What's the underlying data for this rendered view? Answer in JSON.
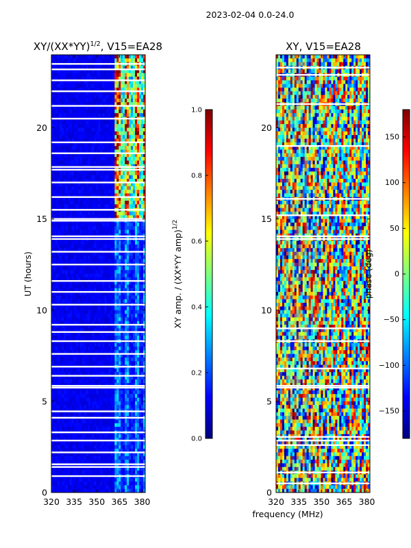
{
  "figure": {
    "suptitle": "2023-02-04 0.0-24.0",
    "xlabel_shared": "frequency (MHz)"
  },
  "colors": {
    "jet": [
      "#00007f",
      "#0000ff",
      "#007fff",
      "#00ffff",
      "#7fff7f",
      "#ffff00",
      "#ff7f00",
      "#ff0000",
      "#7f0000"
    ],
    "gap": "#ffffff"
  },
  "chart_data": [
    {
      "type": "heatmap",
      "id": "left",
      "title_main": "XY/(XX*YY)",
      "title_sup": "1/2",
      "title_tail": ", V15=EA28",
      "xlabel": "",
      "ylabel": "UT (hours)",
      "xlim": [
        320,
        382
      ],
      "ylim": [
        0,
        24
      ],
      "xticks": [
        320,
        335,
        350,
        365,
        380
      ],
      "yticks": [
        0,
        5,
        10,
        15,
        20
      ],
      "colorbar": {
        "label_main": "XY amp. / (XX*YY amp)",
        "label_sup": "1/2",
        "range": [
          0.0,
          1.0
        ],
        "ticks": [
          "0.0",
          "0.2",
          "0.4",
          "0.6",
          "0.8",
          "1.0"
        ],
        "tick_values": [
          0.0,
          0.2,
          0.4,
          0.6,
          0.8,
          1.0
        ]
      },
      "gaps_ut": [
        0.9,
        1.4,
        1.55,
        2.2,
        2.85,
        3.3,
        4.1,
        4.45,
        5.75,
        5.85,
        6.4,
        6.9,
        7.6,
        8.3,
        8.8,
        9.2,
        10.3,
        11.0,
        11.6,
        12.5,
        13.2,
        13.9,
        14.05,
        14.9,
        15.0,
        15.5,
        16.2,
        17.0,
        17.7,
        17.85,
        18.6,
        19.2,
        20.5,
        21.2,
        22.0,
        22.6,
        23.2,
        23.5
      ],
      "features": [
        {
          "f_from": 362,
          "f_to": 382,
          "ut_from": 0,
          "ut_to": 18.0,
          "level": 0.25
        },
        {
          "f_from": 362,
          "f_to": 382,
          "ut_from": 15.0,
          "ut_to": 24.0,
          "level": 0.75
        }
      ],
      "background_level": 0.08
    },
    {
      "type": "heatmap",
      "id": "right",
      "title": "XY, V15=EA28",
      "xlabel": "frequency (MHz)",
      "ylabel": "",
      "xlim": [
        320,
        382
      ],
      "ylim": [
        0,
        24
      ],
      "xticks": [
        320,
        335,
        350,
        365,
        380
      ],
      "yticks": [
        0,
        5,
        10,
        15,
        20
      ],
      "colorbar": {
        "label": "phase (deg)",
        "range": [
          -180,
          180
        ],
        "ticks": [
          "150",
          "100",
          "50",
          "0",
          "−50",
          "−100",
          "−150"
        ],
        "tick_values": [
          150,
          100,
          50,
          0,
          -50,
          -100,
          -150
        ]
      },
      "gaps_ut": [
        0.5,
        1.1,
        2.6,
        2.85,
        3.05,
        5.75,
        5.85,
        6.8,
        8.3,
        9.0,
        13.9,
        14.05,
        15.2,
        16.1,
        19.0,
        21.3,
        22.9,
        23.3
      ],
      "value_kind": "phase (random across full range)"
    }
  ]
}
